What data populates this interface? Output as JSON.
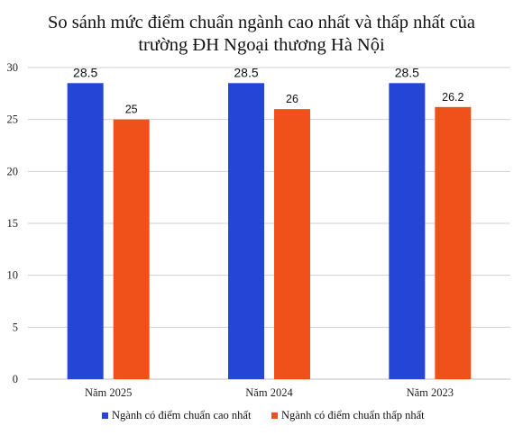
{
  "chart_data": {
    "type": "bar",
    "title_lines": [
      "So sánh mức điểm chuẩn ngành cao nhất và thấp nhất của",
      "trường ĐH Ngoại thương Hà Nội"
    ],
    "xlabel": "",
    "ylabel": "",
    "categories": [
      "Năm 2025",
      "Năm 2024",
      "Năm 2023"
    ],
    "series": [
      {
        "name": "Ngành có điểm chuẩn cao nhất",
        "color": "#2445d6",
        "values": [
          28.5,
          28.5,
          28.5
        ],
        "labels": [
          "28.5",
          "28.5",
          "28.5"
        ]
      },
      {
        "name": "Ngành có điểm chuẩn thấp nhất",
        "color": "#f0501a",
        "values": [
          25,
          26,
          26.2
        ],
        "labels": [
          "25",
          "26",
          "26.2"
        ]
      }
    ],
    "ylim": [
      0,
      30
    ],
    "yticks": [
      0,
      5,
      10,
      15,
      20,
      25,
      30
    ],
    "ytick_labels": [
      "0",
      "5",
      "10",
      "15",
      "20",
      "25",
      "30"
    ],
    "grid": true,
    "legend_position": "bottom"
  }
}
